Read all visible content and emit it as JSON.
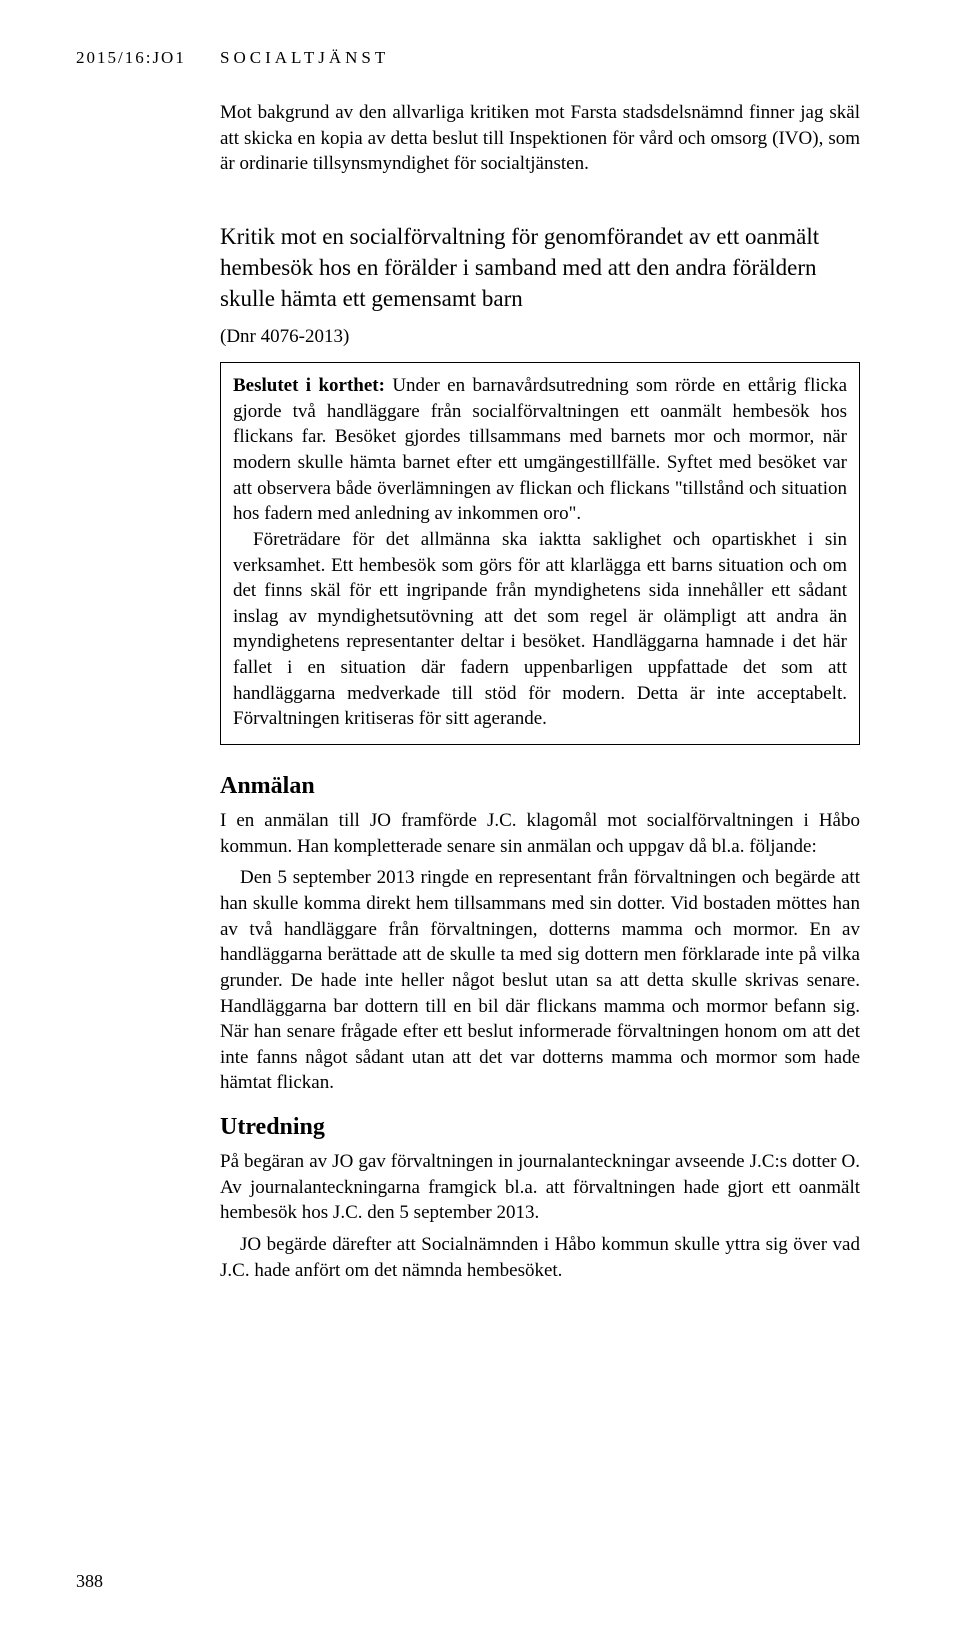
{
  "header": {
    "left": "2015/16:JO1",
    "right": "SOCIALTJÄNST"
  },
  "intro_para": "Mot bakgrund av den allvarliga kritiken mot Farsta stadsdelsnämnd finner jag skäl att skicka en kopia av detta beslut till Inspektionen för vård och omsorg (IVO), som är ordinarie tillsynsmyndighet för socialtjänsten.",
  "title": "Kritik mot en socialförvaltning för genomförandet av ett oanmält hembesök hos en förälder i samband med att den andra föräldern skulle hämta ett gemensamt barn",
  "dnr": "(Dnr 4076-2013)",
  "box": {
    "p1": "Beslutet i korthet: Under en barnavårdsutredning som rörde en ettårig flicka gjorde två handläggare från socialförvaltningen ett oanmält hembesök hos flickans far. Besöket gjordes tillsammans med barnets mor och mormor, när modern skulle hämta barnet efter ett umgängestillfälle. Syftet med besöket var att observera både överlämningen av flickan och flickans \"tillstånd och situation hos fadern med anledning av inkommen oro\".",
    "p2": "Företrädare för det allmänna ska iaktta saklighet och opartiskhet i sin verksamhet. Ett hembesök som görs för att klarlägga ett barns situation och om det finns skäl för ett ingripande från myndighetens sida innehåller ett sådant inslag av myndighetsutövning att det som regel är olämpligt att andra än myndighetens representanter deltar i besöket. Handläggarna hamnade i det här fallet i en situation där fadern uppenbarligen uppfattade det som att handläggarna medverkade till stöd för modern. Detta är inte acceptabelt. Förvaltningen kritiseras för sitt agerande.",
    "bold_lead": "Beslutet i korthet:"
  },
  "anmalan": {
    "heading": "Anmälan",
    "p1": "I en anmälan till JO framförde J.C. klagomål mot socialförvaltningen i Håbo kommun. Han kompletterade senare sin anmälan och uppgav då bl.a. följande:",
    "p2": "Den 5 september 2013 ringde en representant från förvaltningen och begärde att han skulle komma direkt hem tillsammans med sin dotter. Vid bostaden möttes han av två handläggare från förvaltningen, dotterns mamma och mormor. En av handläggarna berättade att de skulle ta med sig dottern men förklarade inte på vilka grunder. De hade inte heller något beslut utan sa att detta skulle skrivas senare. Handläggarna bar dottern till en bil där flickans mamma och mormor befann sig. När han senare frågade efter ett beslut informerade förvaltningen honom om att det inte fanns något sådant utan att det var dotterns mamma och mormor som hade hämtat flickan."
  },
  "utredning": {
    "heading": "Utredning",
    "p1": "På begäran av JO gav förvaltningen in journalanteckningar avseende J.C:s dotter O. Av journalanteckningarna framgick bl.a. att förvaltningen hade gjort ett oanmält hembesök hos J.C. den 5 september 2013.",
    "p2": "JO begärde därefter att Socialnämnden i Håbo kommun skulle yttra sig över vad J.C. hade anfört om det nämnda hembesöket."
  },
  "page_number": "388"
}
